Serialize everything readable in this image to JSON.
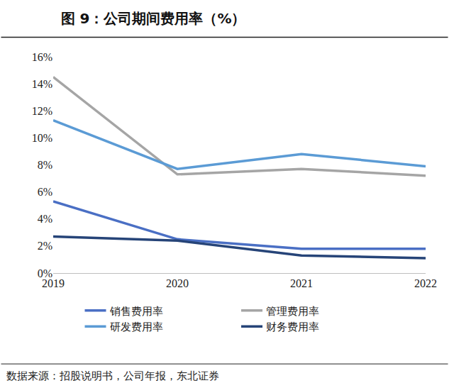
{
  "chart_data": {
    "type": "line",
    "title": "图 9：公司期间费用率（%）",
    "source": "数据来源：招股说明书，公司年报，东北证券",
    "categories": [
      "2019",
      "2020",
      "2021",
      "2022"
    ],
    "series": [
      {
        "name": "销售费用率",
        "color": "#4a6fc4",
        "values": [
          5.3,
          2.5,
          1.8,
          1.8
        ]
      },
      {
        "name": "管理费用率",
        "color": "#a5a5a5",
        "values": [
          14.5,
          7.3,
          7.7,
          7.2
        ]
      },
      {
        "name": "研发费用率",
        "color": "#5b9bd5",
        "values": [
          11.3,
          7.7,
          8.8,
          7.9
        ]
      },
      {
        "name": "财务费用率",
        "color": "#264478",
        "values": [
          2.7,
          2.4,
          1.3,
          1.1
        ]
      }
    ],
    "ylim": [
      0,
      16
    ],
    "yticks": [
      {
        "value": 0,
        "label": "0%"
      },
      {
        "value": 2,
        "label": "2%"
      },
      {
        "value": 4,
        "label": "4%"
      },
      {
        "value": 6,
        "label": "6%"
      },
      {
        "value": 8,
        "label": "8%"
      },
      {
        "value": 10,
        "label": "10%"
      },
      {
        "value": 12,
        "label": "12%"
      },
      {
        "value": 14,
        "label": "14%"
      },
      {
        "value": 16,
        "label": "16%"
      }
    ],
    "grid": false,
    "legend": "bottom"
  }
}
